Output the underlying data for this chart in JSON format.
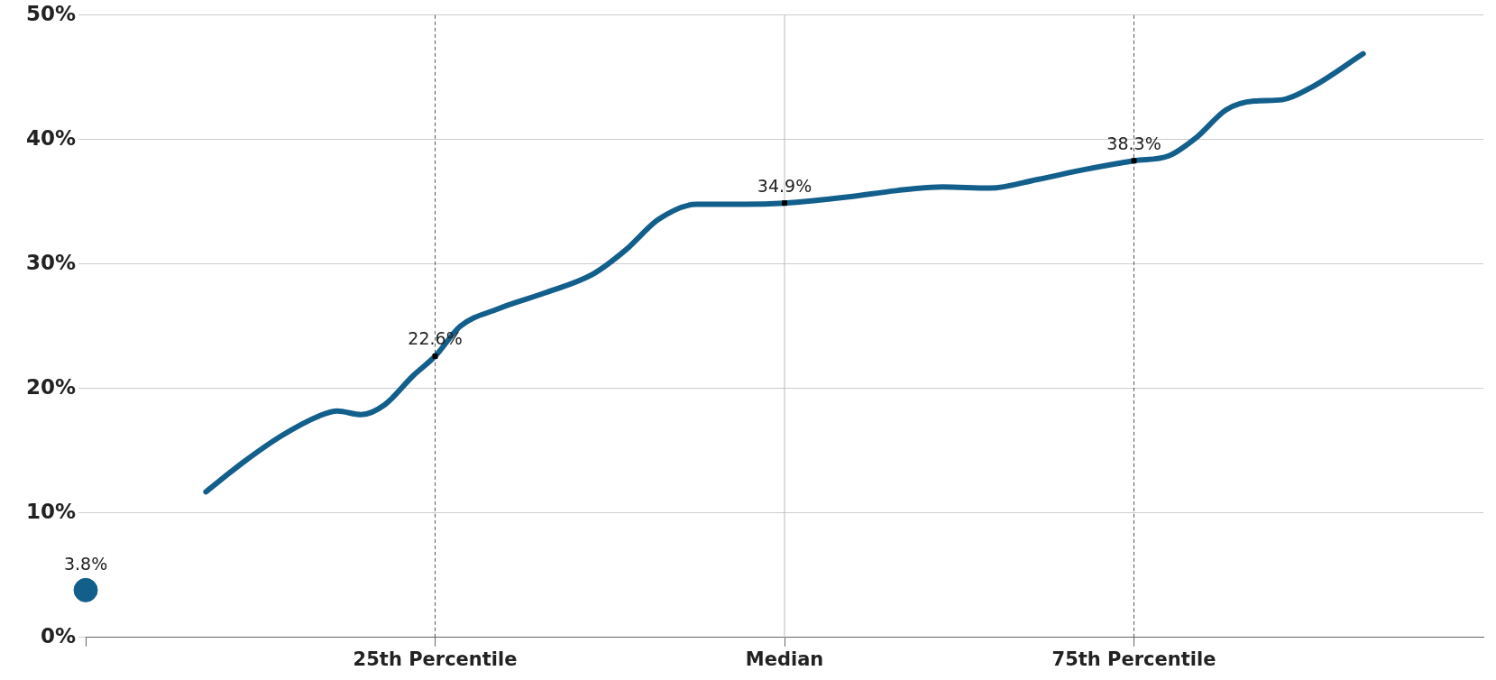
{
  "chart_data": {
    "type": "line",
    "xlim": [
      0,
      100
    ],
    "ylim": [
      0,
      50
    ],
    "xticks": [
      {
        "value": 0,
        "label": null
      },
      {
        "value": 25,
        "label": "25th Percentile"
      },
      {
        "value": 50,
        "label": "Median"
      },
      {
        "value": 75,
        "label": "75th Percentile"
      }
    ],
    "yticks": [
      {
        "value": 0,
        "label": "0%"
      },
      {
        "value": 10,
        "label": "10%"
      },
      {
        "value": 20,
        "label": "20%"
      },
      {
        "value": 30,
        "label": "30%"
      },
      {
        "value": 40,
        "label": "40%"
      },
      {
        "value": 50,
        "label": "50%"
      }
    ],
    "grid": "y",
    "legend": false,
    "ref_lines": [
      {
        "axis": "x",
        "value": 25,
        "color": "#555555",
        "line_style": "dashed"
      },
      {
        "axis": "x",
        "value": 50,
        "color": "#bbbbbb",
        "line_style": "solid"
      },
      {
        "axis": "x",
        "value": 75,
        "color": "#555555",
        "line_style": "dashed"
      }
    ],
    "series": [
      {
        "color": "#135f8c",
        "marker": "none",
        "x": [
          8.6,
          11.3,
          14.0,
          16.7,
          18.0,
          19.7,
          21.4,
          23.4,
          25,
          26.8,
          29.5,
          32.9,
          36.3,
          38.6,
          41.0,
          43.7,
          47.1,
          50,
          54.6,
          58.0,
          61.3,
          64.7,
          68.1,
          71.5,
          75,
          77.5,
          79.5,
          81.6,
          83.6,
          85.6,
          87.7,
          91.4
        ],
        "values": [
          11.7,
          14.1,
          16.2,
          17.8,
          18.2,
          17.9,
          18.7,
          21.0,
          22.6,
          25.0,
          26.4,
          27.7,
          29.2,
          31.1,
          33.6,
          34.8,
          34.8,
          34.9,
          35.4,
          35.9,
          36.2,
          36.1,
          36.8,
          37.6,
          38.3,
          38.7,
          40.2,
          42.4,
          43.1,
          43.2,
          44.2,
          46.9
        ]
      },
      {
        "type": "scatter",
        "color": "#000000",
        "marker": "square",
        "x": [
          25,
          50,
          75
        ],
        "values": [
          22.6,
          34.9,
          38.3
        ],
        "value_labels": [
          "22.6%",
          "34.9%",
          "38.3%"
        ]
      },
      {
        "type": "scatter",
        "color": "#135f8c",
        "marker": "circle",
        "x": [
          0
        ],
        "values": [
          3.8
        ],
        "value_labels": [
          "3.8%"
        ]
      }
    ]
  }
}
